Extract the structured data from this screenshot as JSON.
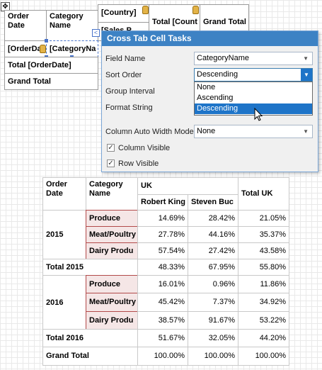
{
  "designer": {
    "move_handle": "✥",
    "headers": {
      "order_date": "Order Date",
      "category_name": "Category Name",
      "country": "[Country]",
      "total_count": "Total [Count",
      "grand_total": "Grand Total"
    },
    "row_field": "[OrderDa",
    "category_field": "[CategoryNa",
    "partial_field": "[Sales P",
    "total_row": "Total [OrderDate]",
    "grand_total_row": "Grand Total",
    "collapse_glyph": "<"
  },
  "panel": {
    "title": "Cross Tab Cell Tasks",
    "field_name_label": "Field Name",
    "field_name_value": "CategoryName",
    "sort_order_label": "Sort Order",
    "sort_order_value": "Descending",
    "group_interval_label": "Group Interval",
    "format_string_label": "Format String",
    "sort_options": [
      "None",
      "Ascending",
      "Descending"
    ],
    "selected_option": "Descending",
    "col_width_label": "Column Auto Width Mode",
    "col_width_value": "None",
    "column_visible_label": "Column Visible",
    "row_visible_label": "Row Visible",
    "check_glyph": "✓"
  },
  "preview": {
    "headers": {
      "order_date": "Order Date",
      "category_name": "Category Name",
      "uk": "UK",
      "robert": "Robert King",
      "steven": "Steven Buc",
      "total_uk": "Total UK"
    },
    "groups": [
      {
        "year": "2015",
        "rows": [
          {
            "category": "Produce",
            "robert": "14.69%",
            "steven": "28.42%",
            "total": "21.05%"
          },
          {
            "category": "Meat/Poultry",
            "robert": "27.78%",
            "steven": "44.16%",
            "total": "35.37%"
          },
          {
            "category": "Dairy Produ",
            "robert": "57.54%",
            "steven": "27.42%",
            "total": "43.58%"
          }
        ],
        "total": {
          "label": "Total 2015",
          "robert": "48.33%",
          "steven": "67.95%",
          "total": "55.80%"
        }
      },
      {
        "year": "2016",
        "rows": [
          {
            "category": "Produce",
            "robert": "16.01%",
            "steven": "0.96%",
            "total": "11.86%"
          },
          {
            "category": "Meat/Poultry",
            "robert": "45.42%",
            "steven": "7.37%",
            "total": "34.92%"
          },
          {
            "category": "Dairy Produ",
            "robert": "38.57%",
            "steven": "91.67%",
            "total": "53.22%"
          }
        ],
        "total": {
          "label": "Total 2016",
          "robert": "51.67%",
          "steven": "32.05%",
          "total": "44.20%"
        }
      }
    ],
    "grand_total": {
      "label": "Grand Total",
      "robert": "100.00%",
      "steven": "100.00%",
      "total": "100.00%"
    }
  },
  "colors": {
    "panel_title_bg": "#3d82c4",
    "selection": "#1e74c8",
    "category_fill": "#f5e6e6",
    "category_border": "#b24a4a",
    "field_tag": "#e3b347"
  }
}
